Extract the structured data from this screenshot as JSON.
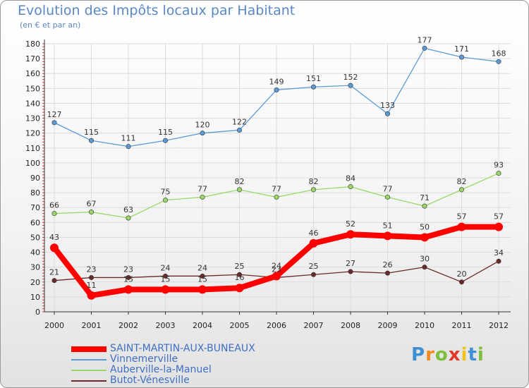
{
  "chart_data": {
    "type": "line",
    "title": "Evolution des Impôts locaux par Habitant",
    "subtitle": "(en € et par an)",
    "x": [
      "2000",
      "2001",
      "2002",
      "2003",
      "2004",
      "2005",
      "2006",
      "2007",
      "2008",
      "2009",
      "2010",
      "2011",
      "2012"
    ],
    "ylim": [
      0,
      180
    ],
    "yticks": [
      0,
      10,
      20,
      30,
      40,
      50,
      60,
      70,
      80,
      90,
      100,
      110,
      120,
      130,
      140,
      150,
      160,
      170,
      180
    ],
    "grid": true,
    "series": [
      {
        "name": "SAINT-MARTIN-AUX-BUNEAUX",
        "color": "#ff0000",
        "values": [
          43,
          11,
          15,
          15,
          15,
          16,
          24,
          46,
          52,
          51,
          50,
          57,
          57
        ],
        "labels": [
          "43",
          "11",
          "15",
          "15",
          "15",
          "16",
          "24",
          "46",
          "52",
          "51",
          "50",
          "57",
          "57"
        ]
      },
      {
        "name": "Vinnemerville",
        "color": "#5b9bd5",
        "values": [
          127,
          115,
          111,
          115,
          120,
          122,
          149,
          151,
          152,
          133,
          177,
          171,
          168
        ],
        "labels": [
          "127",
          "115",
          "111",
          "115",
          "120",
          "122",
          "149",
          "151",
          "152",
          "133",
          "177",
          "171",
          "168"
        ]
      },
      {
        "name": "Auberville-la-Manuel",
        "color": "#9ad86a",
        "values": [
          66,
          67,
          63,
          75,
          77,
          82,
          77,
          82,
          84,
          77,
          71,
          82,
          93
        ],
        "labels": [
          "66",
          "67",
          "63",
          "75",
          "77",
          "82",
          "77",
          "82",
          "84",
          "77",
          "71",
          "82",
          "93"
        ]
      },
      {
        "name": "Butot-Vénesville",
        "color": "#6b2a2a",
        "values": [
          21,
          23,
          23,
          24,
          24,
          25,
          23,
          25,
          27,
          26,
          30,
          20,
          34
        ],
        "labels": [
          "21",
          "23",
          "23",
          "24",
          "24",
          "25",
          "23",
          "25",
          "27",
          "26",
          "30",
          "20",
          "34"
        ]
      }
    ],
    "legend_position": "bottom-left"
  },
  "brand": {
    "letters": [
      "P",
      "r",
      "o",
      "x",
      "i",
      "t",
      "i"
    ],
    "colors": [
      "#3f8fd2",
      "#f28a1c",
      "#7cbf3a",
      "#e23a2a",
      "#f2c21c",
      "#3f8fd2",
      "#7cbf3a"
    ]
  }
}
